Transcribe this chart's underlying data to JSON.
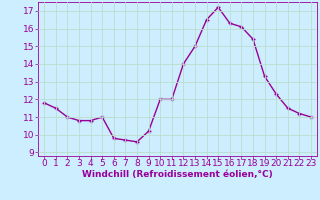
{
  "x": [
    0,
    1,
    2,
    3,
    4,
    5,
    6,
    7,
    8,
    9,
    10,
    11,
    12,
    13,
    14,
    15,
    16,
    17,
    18,
    19,
    20,
    21,
    22,
    23
  ],
  "y": [
    11.8,
    11.5,
    11.0,
    10.8,
    10.8,
    11.0,
    9.8,
    9.7,
    9.6,
    10.2,
    12.0,
    12.0,
    14.0,
    15.0,
    16.5,
    17.2,
    16.3,
    16.1,
    15.4,
    13.3,
    12.3,
    11.5,
    11.2,
    11.0
  ],
  "xlim": [
    -0.5,
    23.5
  ],
  "ylim": [
    8.8,
    17.5
  ],
  "yticks": [
    9,
    10,
    11,
    12,
    13,
    14,
    15,
    16,
    17
  ],
  "xticks": [
    0,
    1,
    2,
    3,
    4,
    5,
    6,
    7,
    8,
    9,
    10,
    11,
    12,
    13,
    14,
    15,
    16,
    17,
    18,
    19,
    20,
    21,
    22,
    23
  ],
  "xlabel": "Windchill (Refroidissement éolien,°C)",
  "line_color": "#990099",
  "marker": "+",
  "bg_color": "#cceeff",
  "grid_color": "#bbddcc",
  "tick_color": "#990099",
  "label_color": "#990099",
  "font_size": 6.5
}
